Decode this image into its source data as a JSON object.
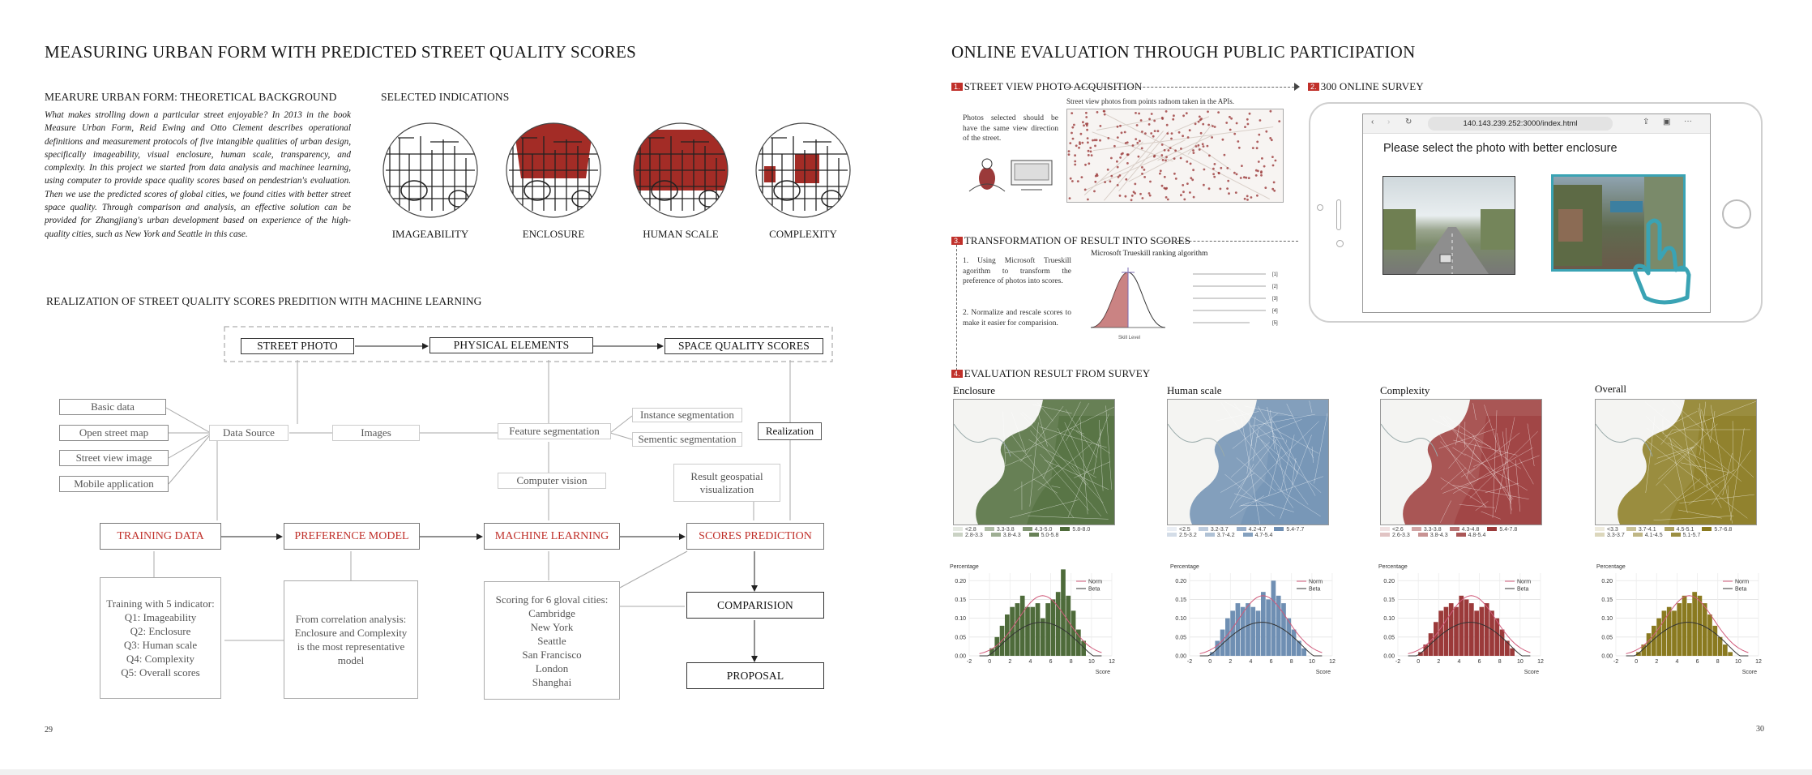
{
  "left": {
    "title": "MEASURING URBAN FORM WITH PREDICTED STREET QUALITY SCORES",
    "theory": {
      "heading": "MEARURE URBAN FORM: THEORETICAL BACKGROUND",
      "paragraph": "What makes strolling down a particular street enjoyable? In 2013 in the book Measure Urban Form, Reid Ewing and Otto Clement describes operational definitions and measurement protocols of five intangible qualities of urban design, specifically imageability, visual enclosure, human scale, transparency, and complexity. In this project we started from data analysis and machinee learning, using computer to provide space quality scores based on pendestrian's evaluation. Then we use the predicted scores of global cities, we found cities with better street space quality. Through comparison and analysis, an effective solution can be provided for Zhangjiang's urban development based on experience of the high-quality cities, such as New York and Seattle in this case."
    },
    "indications": {
      "heading": "SELECTED INDICATIONS",
      "items": [
        "IMAGEABILITY",
        "ENCLOSURE",
        "HUMAN SCALE",
        "COMPLEXITY"
      ]
    },
    "ml": {
      "heading": "REALIZATION OF STREET QUALITY SCORES PREDITION WITH MACHINE LEARNING",
      "top_row": [
        "STREET PHOTO",
        "PHYSICAL ELEMENTS",
        "SPACE QUALITY SCORES"
      ],
      "sources": [
        "Basic data",
        "Open street map",
        "Street view image",
        "Mobile application"
      ],
      "data_source": "Data Source",
      "images": "Images",
      "feature_seg": "Feature segmentation",
      "instance_seg": "Instance segmentation",
      "semantic_seg": "Sementic segmentation",
      "realization": "Realization",
      "computer_vision": "Computer vision",
      "result_geo_1": "Result geospatial",
      "result_geo_2": "visualization",
      "red_row": [
        "TRAINING DATA",
        "PREFERENCE MODEL",
        "MACHINE LEARNING",
        "SCORES PREDICTION"
      ],
      "training_lines": [
        "Training with 5 indicator:",
        "Q1: Imageability",
        "Q2: Enclosure",
        "Q3: Human scale",
        "Q4: Complexity",
        "Q5: Overall scores"
      ],
      "correlation_lines": [
        "From correlation analysis:",
        "Enclosure and Complexity",
        "is the most representative",
        "model"
      ],
      "scoring_lines": [
        "Scoring for 6 gloval cities:",
        "Cambridge",
        "New York",
        "Seattle",
        "San Francisco",
        "London",
        "Shanghai"
      ],
      "comparision": "COMPARISION",
      "proposal": "PROPOSAL"
    },
    "page_number": "29"
  },
  "right": {
    "title": "ONLINE EVALUATION THROUGH PUBLIC PARTICIPATION",
    "step1": {
      "num": "1.",
      "heading": "STREET VIEW PHOTO ACQUISITION",
      "caption": "Street view photos from points radnom taken in the APIs.",
      "note": "Photos selected should be have the same view direction of the street."
    },
    "step2": {
      "num": "2.",
      "heading": "300 ONLINE SURVEY",
      "url": "140.143.239.252:3000/index.html",
      "prompt": "Please select the photo with better enclosure"
    },
    "step3": {
      "num": "3.",
      "heading": "TRANSFORMATION OF RESULT INTO SCORES",
      "algo_title": "Microsoft Trueskill ranking algorithm",
      "point1": "1. Using Microsoft Trueskill agorithm to transform the preference of photos into scores.",
      "point2": "2. Normalize and rescale scores to make it easier for comparision.",
      "skill_label": "Skill Level",
      "eq_nums": [
        "[1]",
        "[2]",
        "[3]",
        "[4]",
        "[5]"
      ]
    },
    "step4": {
      "num": "4.",
      "heading": "EVALUATION RESULT FROM SURVEY",
      "maps": [
        {
          "title": "Enclosure",
          "color": "#4e6b3a",
          "legend": [
            "<2.8",
            "3.3-3.8",
            "4.3-5.0",
            "5.8-8.0",
            "2.8-3.3",
            "3.8-4.3",
            "5.0-5.8"
          ]
        },
        {
          "title": "Human scale",
          "color": "#6f8fb3",
          "legend": [
            "<2.5",
            "3.2-3.7",
            "4.2-4.7",
            "5.4-7.7",
            "2.5-3.2",
            "3.7-4.2",
            "4.7-5.4"
          ]
        },
        {
          "title": "Complexity",
          "color": "#9b3a3a",
          "legend": [
            "<2.6",
            "3.3-3.8",
            "4.3-4.8",
            "5.4-7.8",
            "2.6-3.3",
            "3.8-4.3",
            "4.8-5.4"
          ]
        },
        {
          "title": "Overall",
          "color": "#8a7a20",
          "legend": [
            "<3.3",
            "3.7-4.1",
            "4.5-5.1",
            "5.7-6.8",
            "3.3-3.7",
            "4.1-4.5",
            "5.1-5.7"
          ]
        }
      ],
      "hist_ylabel": "Percentage",
      "hist_xlabel": "Score",
      "hist_legend": [
        "Norm",
        "Beta"
      ],
      "hist_yticks": [
        "0.20",
        "0.15",
        "0.10",
        "0.05",
        "0.00"
      ],
      "hist_xticks": [
        "-2",
        "0",
        "2",
        "4",
        "6",
        "8",
        "10",
        "12"
      ]
    },
    "page_number": "30"
  },
  "chart_data": [
    {
      "type": "bar",
      "title": "Enclosure",
      "xlabel": "Score",
      "ylabel": "Percentage",
      "ylim": [
        0,
        0.22
      ],
      "x": [
        0.25,
        0.75,
        1.25,
        1.75,
        2.25,
        2.75,
        3.25,
        3.75,
        4.25,
        4.75,
        5.25,
        5.75,
        6.25,
        6.75,
        7.25,
        7.75,
        8.25,
        8.75,
        9.25
      ],
      "values": [
        0.02,
        0.05,
        0.08,
        0.11,
        0.13,
        0.14,
        0.16,
        0.13,
        0.13,
        0.14,
        0.1,
        0.14,
        0.15,
        0.17,
        0.23,
        0.16,
        0.12,
        0.07,
        0.04
      ]
    },
    {
      "type": "bar",
      "title": "Human scale",
      "xlabel": "Score",
      "ylabel": "Percentage",
      "ylim": [
        0,
        0.22
      ],
      "x": [
        0.25,
        0.75,
        1.25,
        1.75,
        2.25,
        2.75,
        3.25,
        3.75,
        4.25,
        4.75,
        5.25,
        5.75,
        6.25,
        6.75,
        7.25,
        7.75,
        8.25,
        8.75,
        9.25
      ],
      "values": [
        0.01,
        0.04,
        0.07,
        0.1,
        0.12,
        0.14,
        0.13,
        0.14,
        0.13,
        0.12,
        0.17,
        0.15,
        0.2,
        0.16,
        0.14,
        0.1,
        0.07,
        0.04,
        0.02
      ]
    },
    {
      "type": "bar",
      "title": "Complexity",
      "xlabel": "Score",
      "ylabel": "Percentage",
      "ylim": [
        0,
        0.22
      ],
      "x": [
        0.25,
        0.75,
        1.25,
        1.75,
        2.25,
        2.75,
        3.25,
        3.75,
        4.25,
        4.75,
        5.25,
        5.75,
        6.25,
        6.75,
        7.25,
        7.75,
        8.25,
        8.75,
        9.25
      ],
      "values": [
        0.01,
        0.03,
        0.06,
        0.09,
        0.12,
        0.13,
        0.14,
        0.13,
        0.16,
        0.15,
        0.14,
        0.12,
        0.13,
        0.14,
        0.12,
        0.1,
        0.07,
        0.04,
        0.02
      ]
    },
    {
      "type": "bar",
      "title": "Overall",
      "xlabel": "Score",
      "ylabel": "Percentage",
      "ylim": [
        0,
        0.22
      ],
      "x": [
        0.25,
        0.75,
        1.25,
        1.75,
        2.25,
        2.75,
        3.25,
        3.75,
        4.25,
        4.75,
        5.25,
        5.75,
        6.25,
        6.75,
        7.25,
        7.75,
        8.25,
        8.75,
        9.25
      ],
      "values": [
        0.01,
        0.03,
        0.06,
        0.08,
        0.1,
        0.12,
        0.13,
        0.12,
        0.14,
        0.16,
        0.14,
        0.17,
        0.16,
        0.14,
        0.11,
        0.08,
        0.05,
        0.03,
        0.01
      ]
    }
  ]
}
